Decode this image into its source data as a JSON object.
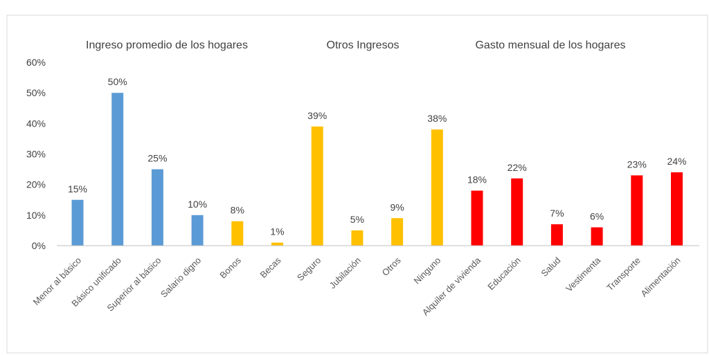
{
  "chart_data": {
    "type": "bar",
    "group_labels": [
      "Ingreso promedio de los hogares",
      "Otros Ingresos",
      "Gasto mensual de los hogares"
    ],
    "categories": [
      "Menor al básico",
      "Básico unificado",
      "Superior al básico",
      "Salario digno",
      "Bonos",
      "Becas",
      "Seguro",
      "Jubilación",
      "Otros",
      "Ninguno",
      "Alquiler de vivienda",
      "Educación",
      "Salud",
      "Vestimenta",
      "Transporte",
      "Alimentación"
    ],
    "values": [
      15,
      50,
      25,
      10,
      8,
      1,
      39,
      5,
      9,
      38,
      18,
      22,
      7,
      6,
      23,
      24
    ],
    "data_labels": [
      "15%",
      "50%",
      "25%",
      "10%",
      "8%",
      "1%",
      "39%",
      "5%",
      "9%",
      "38%",
      "18%",
      "22%",
      "7%",
      "6%",
      "23%",
      "24%"
    ],
    "bar_colors": [
      "#5b9bd5",
      "#5b9bd5",
      "#5b9bd5",
      "#5b9bd5",
      "#ffc000",
      "#ffc000",
      "#ffc000",
      "#ffc000",
      "#ffc000",
      "#ffc000",
      "#ff0000",
      "#ff0000",
      "#ff0000",
      "#ff0000",
      "#ff0000",
      "#ff0000"
    ],
    "y_ticks": [
      "0%",
      "10%",
      "20%",
      "30%",
      "40%",
      "50%",
      "60%"
    ],
    "ylim": [
      0,
      60
    ],
    "grid": false
  }
}
